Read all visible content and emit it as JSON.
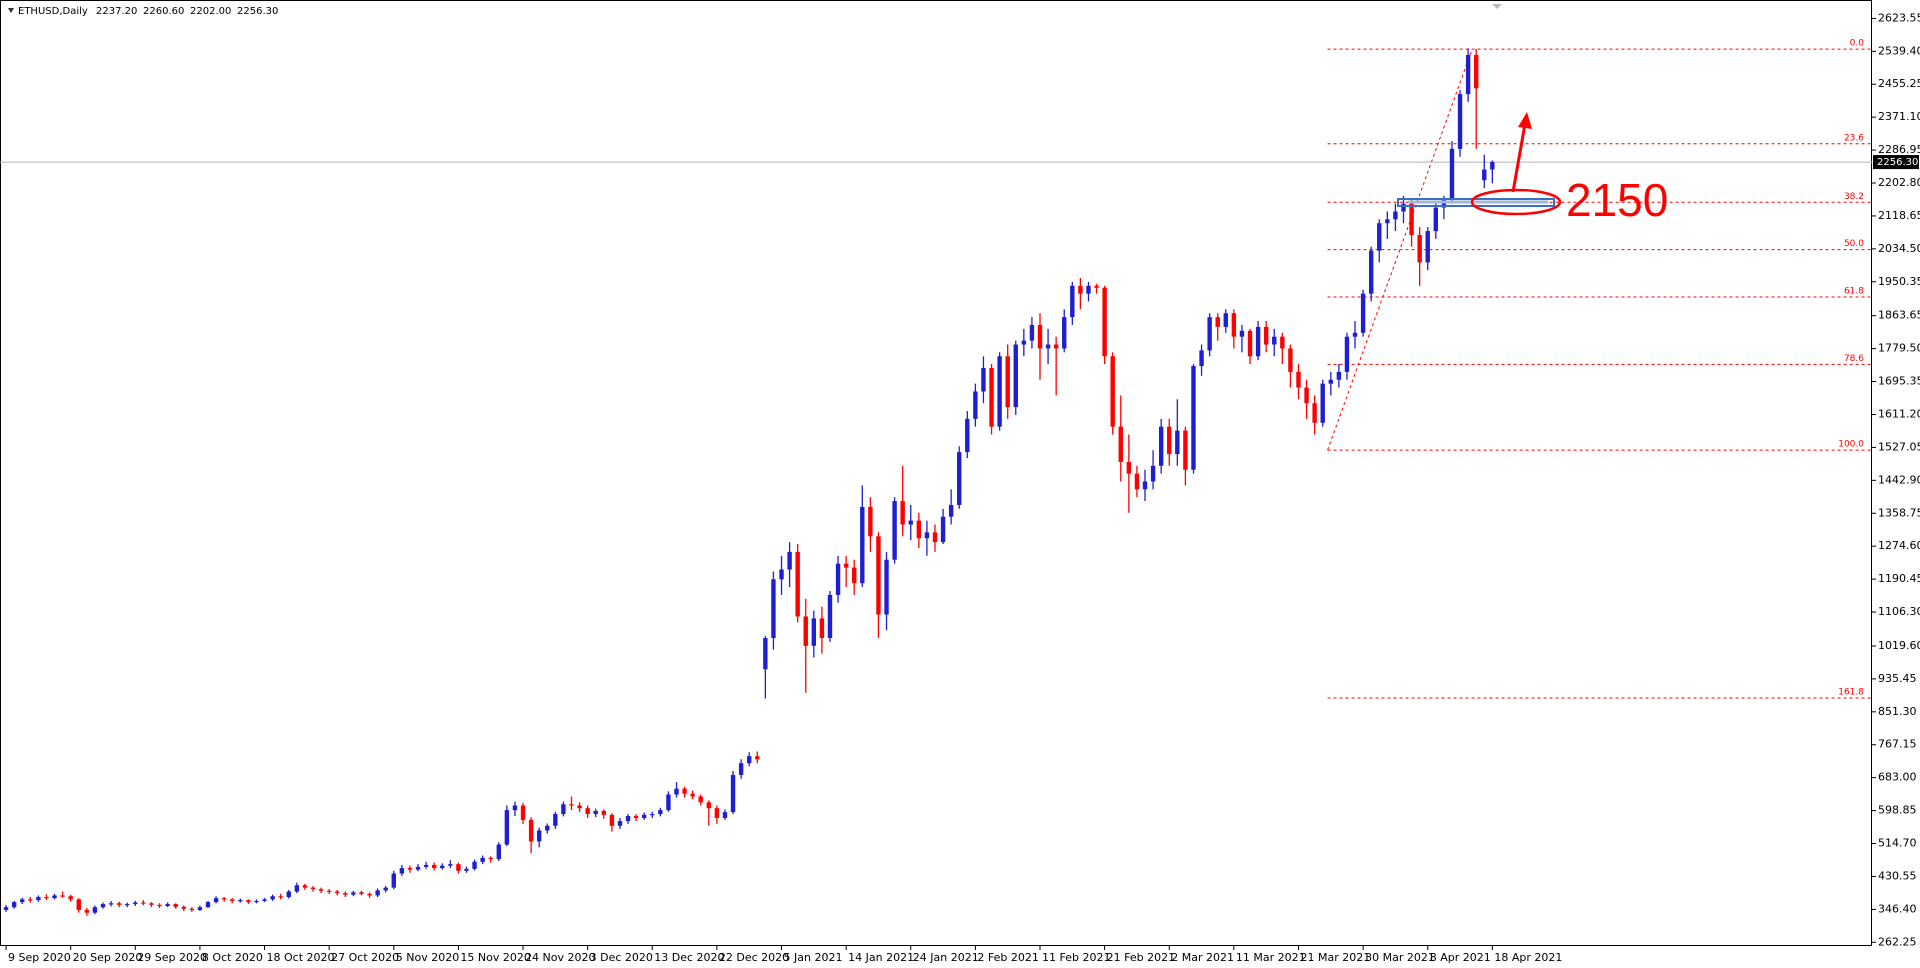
{
  "chart_data": {
    "type": "candlestick",
    "title": "ETHUSD,Daily",
    "quote": [
      "2237.20",
      "2260.60",
      "2202.00",
      "2256.30"
    ],
    "bull_color": "#1f1fd2",
    "bear_color": "#ff0000",
    "xlim": [
      -0.75,
      231
    ],
    "ylim": [
      252.8,
      2670.5
    ],
    "xticks": [
      {
        "value": 0,
        "label": "9 Sep 2020"
      },
      {
        "value": 8,
        "label": "20 Sep 2020"
      },
      {
        "value": 16,
        "label": "29 Sep 2020"
      },
      {
        "value": 24,
        "label": "8 Oct 2020"
      },
      {
        "value": 32,
        "label": "18 Oct 2020"
      },
      {
        "value": 40,
        "label": "27 Oct 2020"
      },
      {
        "value": 48,
        "label": "5 Nov 2020"
      },
      {
        "value": 56,
        "label": "15 Nov 2020"
      },
      {
        "value": 64,
        "label": "24 Nov 2020"
      },
      {
        "value": 72,
        "label": "3 Dec 2020"
      },
      {
        "value": 80,
        "label": "13 Dec 2020"
      },
      {
        "value": 88,
        "label": "22 Dec 2020"
      },
      {
        "value": 96,
        "label": "5 Jan 2021"
      },
      {
        "value": 104,
        "label": "14 Jan 2021"
      },
      {
        "value": 112,
        "label": "24 Jan 2021"
      },
      {
        "value": 120,
        "label": "2 Feb 2021"
      },
      {
        "value": 128,
        "label": "11 Feb 2021"
      },
      {
        "value": 136,
        "label": "21 Feb 2021"
      },
      {
        "value": 144,
        "label": "2 Mar 2021"
      },
      {
        "value": 152,
        "label": "11 Mar 2021"
      },
      {
        "value": 160,
        "label": "21 Mar 2021"
      },
      {
        "value": 168,
        "label": "30 Mar 2021"
      },
      {
        "value": 176,
        "label": "8 Apr 2021"
      },
      {
        "value": 184,
        "label": "18 Apr 2021"
      }
    ],
    "yticks": [
      2623.55,
      {
        "value": 2539.4,
        "label": "2539.40"
      },
      2455.25,
      {
        "value": 2371.1,
        "label": "2371.10"
      },
      2286.95,
      {
        "value": 2202.8,
        "label": "2202.80"
      },
      2118.65,
      {
        "value": 2034.5,
        "label": "2034.50"
      },
      1950.35,
      1863.65,
      {
        "value": 1779.5,
        "label": "1779.50"
      },
      1695.35,
      {
        "value": 1611.2,
        "label": "1611.20"
      },
      1527.05,
      {
        "value": 1442.9,
        "label": "1442.90"
      },
      1358.75,
      {
        "value": 1274.6,
        "label": "1274.60"
      },
      1190.45,
      {
        "value": 1106.3,
        "label": "1106.30"
      },
      {
        "value": 1019.6,
        "label": "1019.60"
      },
      935.45,
      {
        "value": 851.3,
        "label": "851.30"
      },
      767.15,
      {
        "value": 683,
        "label": "683.00"
      },
      598.85,
      {
        "value": 514.7,
        "label": "514.70"
      },
      430.55,
      {
        "value": 346.4,
        "label": "346.40"
      },
      262.25
    ],
    "last_price": {
      "value": 2256.3,
      "label": "2256.30"
    },
    "open": [
      345,
      352,
      365,
      372,
      370,
      378,
      375,
      382,
      380,
      372,
      345,
      338,
      352,
      360,
      362,
      358,
      360,
      364,
      362,
      358,
      355,
      360,
      353,
      348,
      345,
      352,
      365,
      375,
      372,
      368,
      370,
      365,
      368,
      372,
      380,
      378,
      392,
      408,
      402,
      398,
      394,
      392,
      388,
      384,
      390,
      386,
      382,
      395,
      402,
      438,
      452,
      448,
      455,
      460,
      452,
      458,
      462,
      445,
      450,
      468,
      478,
      475,
      512,
      600,
      612,
      575,
      520,
      548,
      560,
      590,
      615,
      612,
      605,
      590,
      598,
      588,
      560,
      572,
      585,
      580,
      588,
      590,
      600,
      640,
      655,
      642,
      635,
      620,
      605,
      580,
      595,
      690,
      720,
      738,
      960,
      1040,
      1190,
      1215,
      1260,
      1095,
      1020,
      1090,
      1040,
      1150,
      1230,
      1220,
      1180,
      1375,
      1300,
      1100,
      1240,
      1390,
      1330,
      1340,
      1295,
      1310,
      1285,
      1350,
      1380,
      1515,
      1600,
      1670,
      1730,
      1580,
      1760,
      1630,
      1790,
      1800,
      1840,
      1780,
      1790,
      1780,
      1860,
      1940,
      1920,
      1940,
      1935,
      1760,
      1580,
      1490,
      1460,
      1420,
      1440,
      1480,
      1580,
      1510,
      1570,
      1470,
      1735,
      1775,
      1860,
      1835,
      1870,
      1810,
      1825,
      1760,
      1835,
      1790,
      1810,
      1780,
      1720,
      1680,
      1640,
      1590,
      1690,
      1700,
      1720,
      1810,
      1820,
      1920,
      2030,
      2100,
      2110,
      2130,
      2150,
      2070,
      2000,
      2080,
      2140,
      2160,
      2290,
      2430,
      2530,
      2210,
      2237.2
    ],
    "high": [
      358,
      368,
      376,
      378,
      382,
      385,
      386,
      392,
      384,
      375,
      350,
      356,
      364,
      368,
      366,
      364,
      368,
      370,
      365,
      362,
      364,
      362,
      356,
      352,
      356,
      368,
      380,
      378,
      375,
      374,
      372,
      372,
      376,
      384,
      386,
      396,
      415,
      412,
      406,
      402,
      398,
      396,
      392,
      394,
      394,
      390,
      400,
      406,
      445,
      460,
      458,
      462,
      468,
      466,
      464,
      472,
      466,
      456,
      474,
      484,
      482,
      518,
      612,
      622,
      618,
      582,
      555,
      566,
      596,
      622,
      635,
      620,
      612,
      604,
      602,
      592,
      580,
      590,
      590,
      594,
      596,
      606,
      648,
      672,
      660,
      650,
      640,
      625,
      612,
      602,
      700,
      730,
      748,
      750,
      1045,
      1210,
      1250,
      1285,
      1280,
      1140,
      1110,
      1120,
      1160,
      1250,
      1250,
      1240,
      1430,
      1400,
      1310,
      1260,
      1400,
      1480,
      1380,
      1360,
      1340,
      1330,
      1370,
      1420,
      1530,
      1620,
      1690,
      1760,
      1740,
      1770,
      1790,
      1800,
      1830,
      1860,
      1870,
      1830,
      1810,
      1880,
      1950,
      1960,
      1950,
      1945,
      1940,
      1770,
      1660,
      1560,
      1480,
      1470,
      1520,
      1600,
      1600,
      1650,
      1580,
      1740,
      1790,
      1870,
      1870,
      1880,
      1880,
      1840,
      1830,
      1850,
      1850,
      1830,
      1820,
      1790,
      1740,
      1700,
      1660,
      1700,
      1720,
      1740,
      1820,
      1850,
      1930,
      2040,
      2110,
      2130,
      2150,
      2170,
      2160,
      2090,
      2090,
      2150,
      2170,
      2310,
      2440,
      2547,
      2545,
      2275,
      2260.6
    ],
    "low": [
      340,
      348,
      360,
      364,
      366,
      370,
      372,
      376,
      366,
      338,
      330,
      334,
      348,
      354,
      352,
      352,
      355,
      357,
      352,
      350,
      352,
      348,
      342,
      340,
      342,
      350,
      362,
      366,
      362,
      364,
      360,
      362,
      365,
      368,
      372,
      374,
      388,
      396,
      392,
      388,
      386,
      382,
      378,
      380,
      382,
      376,
      378,
      390,
      398,
      432,
      440,
      444,
      450,
      446,
      448,
      452,
      438,
      440,
      446,
      462,
      466,
      470,
      508,
      585,
      565,
      490,
      505,
      540,
      552,
      584,
      600,
      595,
      580,
      582,
      578,
      545,
      552,
      565,
      572,
      575,
      580,
      584,
      596,
      632,
      632,
      628,
      612,
      560,
      565,
      575,
      590,
      680,
      712,
      720,
      885,
      1010,
      1150,
      1170,
      1080,
      900,
      990,
      1000,
      1030,
      1130,
      1170,
      1150,
      1170,
      1260,
      1040,
      1060,
      1230,
      1300,
      1290,
      1270,
      1250,
      1260,
      1280,
      1330,
      1370,
      1500,
      1580,
      1640,
      1560,
      1570,
      1600,
      1610,
      1760,
      1780,
      1700,
      1740,
      1660,
      1770,
      1840,
      1880,
      1900,
      1920,
      1740,
      1560,
      1440,
      1360,
      1400,
      1390,
      1420,
      1460,
      1480,
      1480,
      1430,
      1460,
      1710,
      1760,
      1800,
      1820,
      1780,
      1770,
      1740,
      1750,
      1770,
      1760,
      1740,
      1680,
      1650,
      1600,
      1560,
      1580,
      1660,
      1680,
      1700,
      1780,
      1810,
      1900,
      2000,
      2060,
      2080,
      2100,
      2040,
      1940,
      1980,
      2060,
      2110,
      2150,
      2270,
      2410,
      2290,
      2190,
      2202
    ],
    "close": [
      352,
      365,
      372,
      370,
      378,
      375,
      382,
      380,
      372,
      345,
      338,
      352,
      360,
      362,
      358,
      360,
      364,
      362,
      358,
      355,
      360,
      353,
      348,
      345,
      352,
      365,
      375,
      372,
      368,
      370,
      365,
      368,
      372,
      380,
      378,
      392,
      408,
      402,
      398,
      394,
      392,
      388,
      384,
      390,
      386,
      382,
      395,
      402,
      438,
      452,
      448,
      455,
      460,
      452,
      458,
      462,
      445,
      450,
      468,
      478,
      475,
      512,
      600,
      612,
      575,
      520,
      548,
      560,
      590,
      615,
      612,
      605,
      590,
      598,
      588,
      560,
      572,
      585,
      580,
      588,
      590,
      600,
      640,
      655,
      642,
      635,
      620,
      605,
      580,
      595,
      690,
      720,
      738,
      730,
      1040,
      1190,
      1215,
      1260,
      1095,
      1020,
      1090,
      1040,
      1150,
      1230,
      1220,
      1180,
      1375,
      1300,
      1100,
      1240,
      1390,
      1330,
      1340,
      1295,
      1310,
      1285,
      1350,
      1380,
      1515,
      1600,
      1670,
      1730,
      1580,
      1760,
      1630,
      1790,
      1800,
      1840,
      1780,
      1790,
      1780,
      1860,
      1940,
      1920,
      1940,
      1935,
      1760,
      1580,
      1490,
      1460,
      1420,
      1440,
      1480,
      1580,
      1510,
      1570,
      1470,
      1735,
      1775,
      1860,
      1835,
      1870,
      1810,
      1825,
      1760,
      1835,
      1790,
      1810,
      1780,
      1720,
      1680,
      1640,
      1590,
      1690,
      1700,
      1720,
      1810,
      1820,
      1920,
      2030,
      2100,
      2110,
      2130,
      2150,
      2070,
      2000,
      2080,
      2140,
      2160,
      2290,
      2430,
      2530,
      2445,
      2237.2,
      2256.3
    ],
    "fib": {
      "high": 2545,
      "low": 1520,
      "start": 163.6,
      "color": "#ff0000",
      "levels": [
        {
          "value": 0,
          "label": "0.0"
        },
        23.6,
        38.2,
        {
          "value": 50,
          "label": "50.0"
        },
        61.8,
        78.6,
        {
          "value": 100,
          "label": "100.0"
        },
        161.8
      ]
    },
    "annotation": {
      "text": "2150",
      "color": "#ff0000"
    }
  }
}
